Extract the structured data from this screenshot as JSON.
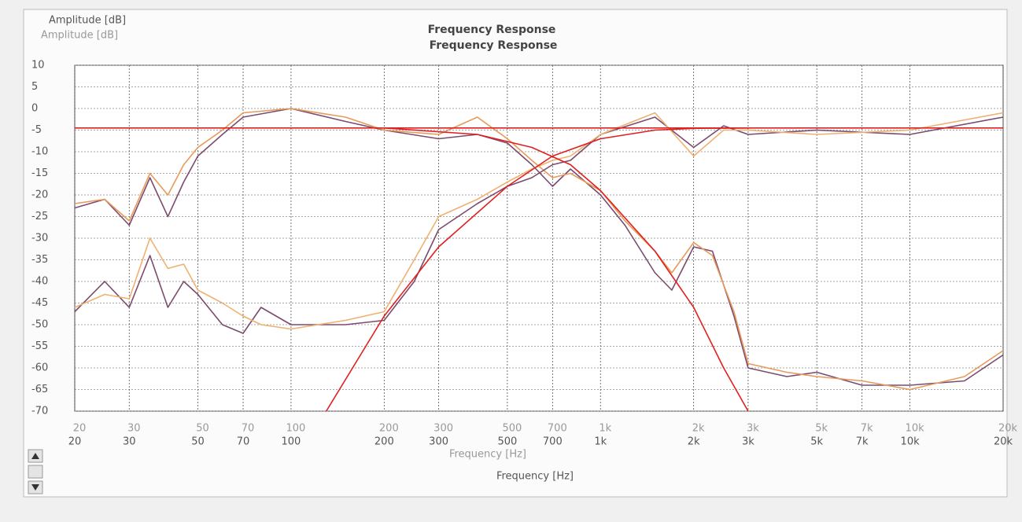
{
  "chart_data": {
    "type": "line",
    "title": "Frequency Response",
    "ylabel": "Amplitude [dB]",
    "xlabel": "Frequency [Hz]",
    "log_x": true,
    "grid": true,
    "xlim": [
      20,
      20000
    ],
    "ylim": [
      -70,
      10
    ],
    "xticks": [
      20,
      30,
      50,
      70,
      100,
      200,
      300,
      500,
      700,
      {
        "value": 1000,
        "label": "1k"
      },
      {
        "value": 2000,
        "label": "2k"
      },
      {
        "value": 3000,
        "label": "3k"
      },
      {
        "value": 5000,
        "label": "5k"
      },
      {
        "value": 7000,
        "label": "7k"
      },
      {
        "value": 10000,
        "label": "10k"
      },
      {
        "value": 20000,
        "label": "20k"
      }
    ],
    "yticks": [
      10,
      5,
      0,
      -5,
      -10,
      -15,
      -20,
      -25,
      -30,
      -35,
      -40,
      -45,
      -50,
      -55,
      -60,
      -65,
      -70
    ],
    "series": [
      {
        "color": "#7b4b6e",
        "x": [
          20,
          25,
          30,
          35,
          40,
          45,
          50,
          60,
          70,
          100,
          150,
          200,
          300,
          400,
          500,
          600,
          700,
          800,
          1000,
          1200,
          1500,
          1700,
          2000,
          2300,
          2700,
          3000,
          4000,
          5000,
          7000,
          10000,
          15000,
          20000
        ],
        "values": [
          -23,
          -21,
          -27,
          -16,
          -25,
          -17,
          -11,
          -6,
          -2,
          0,
          -3,
          -5,
          -7,
          -6,
          -8,
          -13,
          -18,
          -14,
          -20,
          -27,
          -38,
          -42,
          -32,
          -33,
          -48,
          -60,
          -62,
          -61,
          -64,
          -64,
          -63,
          -57
        ]
      },
      {
        "color": "#e79a5a",
        "x": [
          20,
          25,
          30,
          35,
          40,
          45,
          50,
          60,
          70,
          100,
          150,
          200,
          300,
          400,
          500,
          600,
          700,
          800,
          1000,
          1200,
          1500,
          1700,
          2000,
          2300,
          2700,
          3000,
          4000,
          5000,
          7000,
          10000,
          15000,
          20000
        ],
        "values": [
          -22,
          -21,
          -26,
          -15,
          -20,
          -13,
          -9,
          -5,
          -1,
          0,
          -2,
          -5,
          -6,
          -2,
          -7,
          -12,
          -16,
          -15,
          -19,
          -26,
          -33,
          -38,
          -31,
          -34,
          -47,
          -59,
          -61,
          -62,
          -63,
          -65,
          -62,
          -56
        ]
      },
      {
        "color": "#7b4b6e",
        "x": [
          20,
          25,
          30,
          35,
          40,
          45,
          50,
          60,
          70,
          80,
          100,
          150,
          200,
          250,
          300,
          400,
          500,
          600,
          700,
          800,
          1000,
          1500,
          2000,
          2500,
          3000,
          5000,
          10000,
          20000
        ],
        "values": [
          -47,
          -40,
          -46,
          -34,
          -46,
          -40,
          -43,
          -50,
          -52,
          -46,
          -50,
          -50,
          -49,
          -40,
          -28,
          -22,
          -18,
          -16,
          -13,
          -12,
          -6,
          -2,
          -9,
          -4,
          -6,
          -5,
          -6,
          -2
        ]
      },
      {
        "color": "#efb070",
        "x": [
          20,
          25,
          30,
          35,
          40,
          45,
          50,
          60,
          70,
          80,
          100,
          150,
          200,
          250,
          300,
          400,
          500,
          600,
          700,
          800,
          1000,
          1500,
          2000,
          2500,
          3000,
          5000,
          10000,
          20000
        ],
        "values": [
          -46,
          -43,
          -44,
          -30,
          -37,
          -36,
          -42,
          -45,
          -48,
          -50,
          -51,
          -49,
          -47,
          -35,
          -25,
          -21,
          -17,
          -14,
          -12,
          -11,
          -6,
          -1,
          -11,
          -5,
          -5,
          -6,
          -5,
          -1
        ]
      },
      {
        "color": "#e02020",
        "x": [
          20,
          20000
        ],
        "values": [
          -4.5,
          -4.5
        ]
      },
      {
        "color": "#e02020",
        "x": [
          200,
          400,
          600,
          800,
          1000,
          1500,
          2000,
          2500,
          3000
        ],
        "values": [
          -4.5,
          -6,
          -9,
          -13,
          -19,
          -33,
          -46,
          -60,
          -70
        ]
      },
      {
        "color": "#e02020",
        "x": [
          130,
          200,
          300,
          500,
          700,
          1000,
          1500,
          2000,
          3000
        ],
        "values": [
          -70,
          -48,
          -32,
          -18,
          -11,
          -7,
          -5,
          -4.6,
          -4.5
        ]
      }
    ]
  }
}
